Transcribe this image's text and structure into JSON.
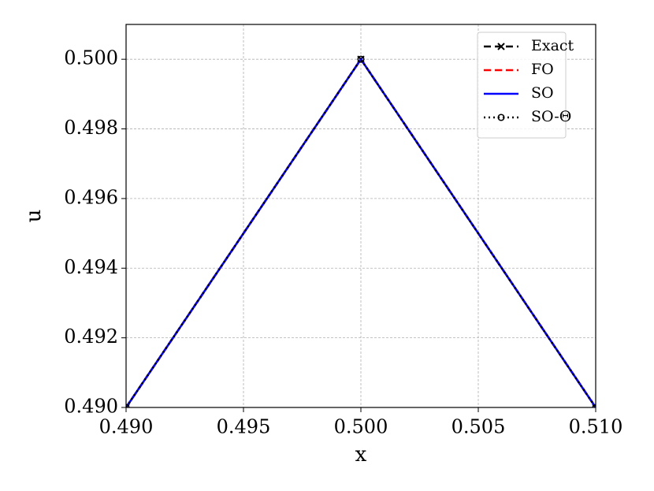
{
  "chart_data": {
    "type": "line",
    "xlabel": "x",
    "ylabel": "u",
    "x": [
      0.49,
      0.5,
      0.51
    ],
    "series": [
      {
        "name": "Exact",
        "color": "#000000",
        "linestyle": "dashed",
        "marker": "x",
        "values": [
          0.49,
          0.5,
          0.49
        ]
      },
      {
        "name": "FO",
        "color": "#ff0000",
        "linestyle": "dashed",
        "marker": "none",
        "values": [
          0.49,
          0.5,
          0.49
        ]
      },
      {
        "name": "SO",
        "color": "#0000ff",
        "linestyle": "solid",
        "marker": "none",
        "values": [
          0.49,
          0.5,
          0.49
        ]
      },
      {
        "name": "SO-Θ",
        "color": "#000000",
        "linestyle": "dotted",
        "marker": "circle",
        "values": [
          0.49,
          0.5,
          0.49
        ]
      }
    ],
    "xlim": [
      0.49,
      0.51
    ],
    "xticks": [
      {
        "value": 0.49,
        "label": "0.490"
      },
      0.495,
      {
        "value": 0.5,
        "label": "0.500"
      },
      0.505,
      {
        "value": 0.51,
        "label": "0.510"
      }
    ],
    "ylim": [
      0.49,
      0.501
    ],
    "yticks": [
      {
        "value": 0.49,
        "label": "0.490"
      },
      0.492,
      0.494,
      0.496,
      0.498,
      {
        "value": 0.5,
        "label": "0.500"
      }
    ],
    "grid": true,
    "legend": "upper right"
  }
}
